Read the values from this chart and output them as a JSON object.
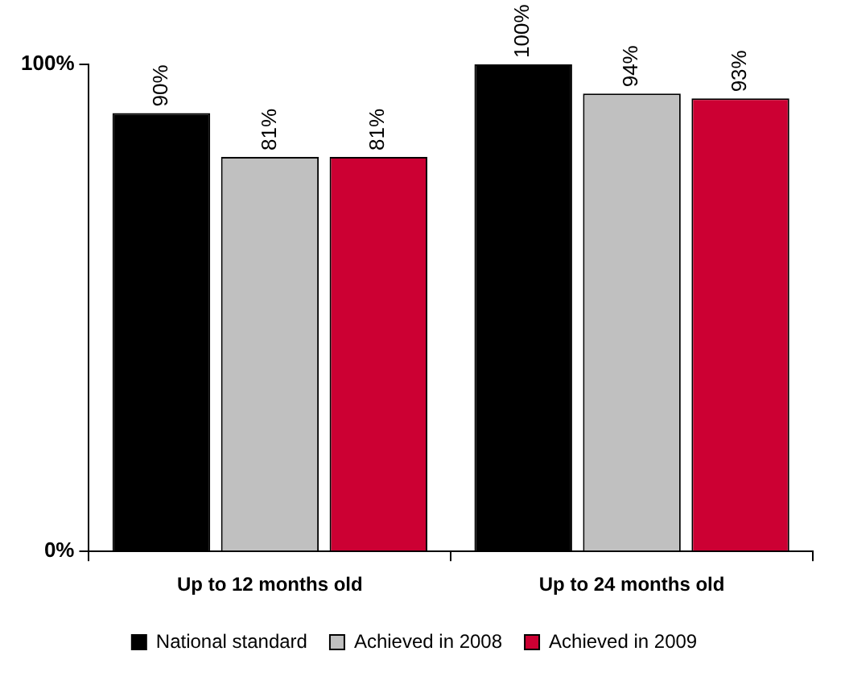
{
  "chart_data": {
    "type": "bar",
    "categories": [
      "Up to 12 months old",
      "Up to 24 months old"
    ],
    "series": [
      {
        "name": "National standard",
        "color": "#000000",
        "values": [
          90,
          100
        ],
        "value_labels": [
          "90%",
          "100%"
        ]
      },
      {
        "name": "Achieved in 2008",
        "color": "#c0c0c0",
        "values": [
          81,
          94
        ],
        "value_labels": [
          "81%",
          "94%"
        ]
      },
      {
        "name": "Achieved in 2009",
        "color": "#cc0033",
        "values": [
          81,
          93
        ],
        "value_labels": [
          "81%",
          "93%"
        ]
      }
    ],
    "ylim": [
      0,
      100
    ],
    "yticks": [
      {
        "value": 0,
        "label": "0%"
      },
      {
        "value": 100,
        "label": "100%"
      }
    ],
    "grid": false,
    "legend": "bottom"
  }
}
